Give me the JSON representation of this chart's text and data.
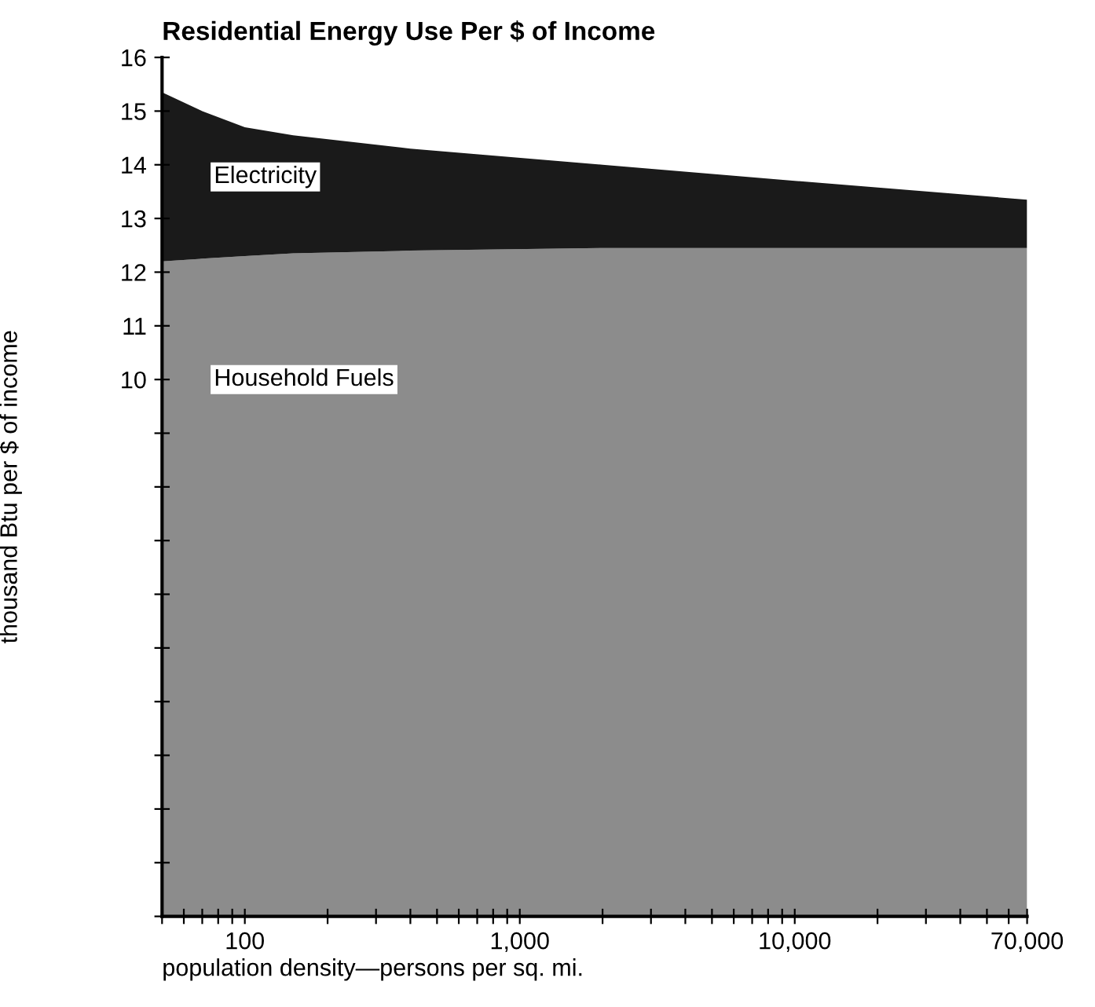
{
  "chart_data": {
    "type": "area",
    "title": "Residential Energy Use Per $ of Income",
    "xlabel": "population density—persons per sq. mi.",
    "ylabel": "thousand Btu per $ of income",
    "stacked": true,
    "log": "x",
    "grid": false,
    "legend": false,
    "x": [
      50,
      70,
      100,
      150,
      400,
      2000,
      10000,
      70000
    ],
    "series": [
      {
        "name": "Household Fuels",
        "color": "#8c8c8c",
        "values": [
          12.2,
          12.25,
          12.3,
          12.35,
          12.4,
          12.45,
          12.45,
          12.45
        ]
      },
      {
        "name": "Electricity",
        "color": "#1a1a1a",
        "values": [
          3.15,
          2.75,
          2.4,
          2.2,
          1.9,
          1.55,
          1.25,
          0.9
        ]
      }
    ],
    "xlim": [
      50,
      70000
    ],
    "xticks": [
      {
        "value": 50,
        "label": null
      },
      {
        "value": 60,
        "label": null
      },
      {
        "value": 70,
        "label": null
      },
      {
        "value": 80,
        "label": null
      },
      {
        "value": 90,
        "label": null
      },
      {
        "value": 100,
        "label": "100"
      },
      {
        "value": 200,
        "label": null
      },
      {
        "value": 300,
        "label": null
      },
      {
        "value": 400,
        "label": null
      },
      {
        "value": 500,
        "label": null
      },
      {
        "value": 600,
        "label": null
      },
      {
        "value": 700,
        "label": null
      },
      {
        "value": 800,
        "label": null
      },
      {
        "value": 900,
        "label": null
      },
      {
        "value": 1000,
        "label": "1,000"
      },
      {
        "value": 2000,
        "label": null
      },
      {
        "value": 3000,
        "label": null
      },
      {
        "value": 4000,
        "label": null
      },
      {
        "value": 5000,
        "label": null
      },
      {
        "value": 6000,
        "label": null
      },
      {
        "value": 7000,
        "label": null
      },
      {
        "value": 8000,
        "label": null
      },
      {
        "value": 9000,
        "label": null
      },
      {
        "value": 10000,
        "label": "10,000"
      },
      {
        "value": 20000,
        "label": null
      },
      {
        "value": 30000,
        "label": null
      },
      {
        "value": 40000,
        "label": null
      },
      {
        "value": 50000,
        "label": null
      },
      {
        "value": 60000,
        "label": null
      },
      {
        "value": 70000,
        "label": "70,000"
      }
    ],
    "ylim": [
      0,
      16
    ],
    "yticks": [
      {
        "value": 0,
        "label": null
      },
      {
        "value": 1,
        "label": null
      },
      {
        "value": 2,
        "label": null
      },
      {
        "value": 3,
        "label": null
      },
      {
        "value": 4,
        "label": null
      },
      {
        "value": 5,
        "label": null
      },
      {
        "value": 6,
        "label": null
      },
      {
        "value": 7,
        "label": null
      },
      {
        "value": 8,
        "label": null
      },
      {
        "value": 9,
        "label": null
      },
      10,
      11,
      12,
      13,
      14,
      15,
      16
    ]
  }
}
